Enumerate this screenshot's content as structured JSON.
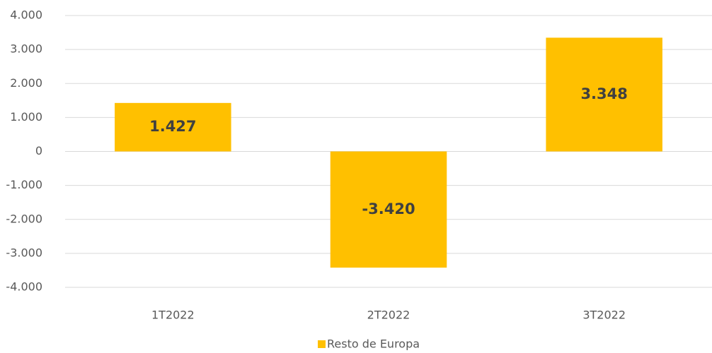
{
  "chart_data": {
    "type": "bar",
    "categories": [
      "1T2022",
      "2T2022",
      "3T2022"
    ],
    "series": [
      {
        "name": "Resto de Europa",
        "color": "#ffc000",
        "values": [
          1427,
          -3420,
          3348
        ],
        "value_labels": [
          "1.427",
          "-3.420",
          "3.348"
        ]
      }
    ],
    "ylim": [
      -4000,
      4000
    ],
    "yticks": [
      {
        "value": -4000,
        "label": "-4.000"
      },
      {
        "value": -3000,
        "label": "-3.000"
      },
      {
        "value": -2000,
        "label": "-2.000"
      },
      {
        "value": -1000,
        "label": "-1.000"
      },
      0,
      {
        "value": 1000,
        "label": "1.000"
      },
      {
        "value": 2000,
        "label": "2.000"
      },
      {
        "value": 3000,
        "label": "3.000"
      },
      {
        "value": 4000,
        "label": "4.000"
      }
    ],
    "grid": true,
    "legend": "bottom"
  }
}
